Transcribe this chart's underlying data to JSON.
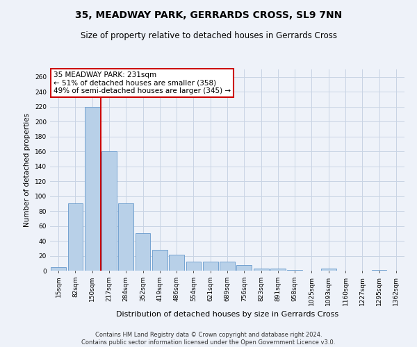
{
  "title": "35, MEADWAY PARK, GERRARDS CROSS, SL9 7NN",
  "subtitle": "Size of property relative to detached houses in Gerrards Cross",
  "xlabel": "Distribution of detached houses by size in Gerrards Cross",
  "ylabel": "Number of detached properties",
  "categories": [
    "15sqm",
    "82sqm",
    "150sqm",
    "217sqm",
    "284sqm",
    "352sqm",
    "419sqm",
    "486sqm",
    "554sqm",
    "621sqm",
    "689sqm",
    "756sqm",
    "823sqm",
    "891sqm",
    "958sqm",
    "1025sqm",
    "1093sqm",
    "1160sqm",
    "1227sqm",
    "1295sqm",
    "1362sqm"
  ],
  "values": [
    5,
    90,
    220,
    160,
    90,
    50,
    28,
    21,
    12,
    12,
    12,
    7,
    3,
    3,
    1,
    0,
    3,
    0,
    0,
    1,
    0
  ],
  "bar_color": "#b8d0e8",
  "bar_edge_color": "#6699cc",
  "vline_color": "#cc0000",
  "annotation_text": "35 MEADWAY PARK: 231sqm\n← 51% of detached houses are smaller (358)\n49% of semi-detached houses are larger (345) →",
  "annotation_box_color": "#ffffff",
  "annotation_box_edge": "#cc0000",
  "background_color": "#eef2f9",
  "grid_color": "#c8d4e4",
  "footer": "Contains HM Land Registry data © Crown copyright and database right 2024.\nContains public sector information licensed under the Open Government Licence v3.0.",
  "ylim": [
    0,
    270
  ],
  "yticks": [
    0,
    20,
    40,
    60,
    80,
    100,
    120,
    140,
    160,
    180,
    200,
    220,
    240,
    260
  ],
  "vline_pos": 2.5,
  "title_fontsize": 10,
  "subtitle_fontsize": 8.5,
  "xlabel_fontsize": 8,
  "ylabel_fontsize": 7.5,
  "tick_fontsize": 6.5,
  "footer_fontsize": 6,
  "ann_fontsize": 7.5
}
